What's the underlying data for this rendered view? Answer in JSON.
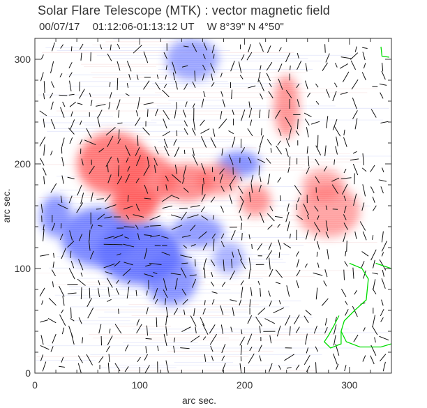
{
  "figure": {
    "title": "Solar Flare Telescope (MTK) : vector magnetic field",
    "date": "00/07/17",
    "time_range": "01:12:06-01:13:12 UT",
    "coords": "W 8°39\"   N 4°50\""
  },
  "chart_data": {
    "type": "heatmap",
    "title": "Solar Flare Telescope (MTK) : vector magnetic field",
    "xlabel": "arc sec.",
    "ylabel": "arc sec.",
    "xlim": [
      0,
      340
    ],
    "ylim": [
      0,
      320
    ],
    "x_ticks": [
      "0",
      "100",
      "200",
      "300"
    ],
    "y_ticks": [
      "0",
      "100",
      "200",
      "300"
    ],
    "legend": "none",
    "colors": {
      "positive": "#ff5a5a",
      "negative": "#5a6bff",
      "contour": "#00dd00",
      "axis": "#333333"
    },
    "positive_regions": [
      {
        "x": 95,
        "y": 162,
        "rx": 22,
        "ry": 18,
        "s": 1.0
      },
      {
        "x": 75,
        "y": 200,
        "rx": 35,
        "ry": 30,
        "s": 0.85
      },
      {
        "x": 105,
        "y": 185,
        "rx": 30,
        "ry": 25,
        "s": 0.75
      },
      {
        "x": 145,
        "y": 182,
        "rx": 25,
        "ry": 18,
        "s": 0.65
      },
      {
        "x": 175,
        "y": 185,
        "rx": 20,
        "ry": 15,
        "s": 0.5
      },
      {
        "x": 210,
        "y": 165,
        "rx": 15,
        "ry": 15,
        "s": 0.55
      },
      {
        "x": 240,
        "y": 255,
        "rx": 12,
        "ry": 30,
        "s": 0.55
      },
      {
        "x": 280,
        "y": 155,
        "rx": 30,
        "ry": 25,
        "s": 0.4
      },
      {
        "x": 275,
        "y": 180,
        "rx": 20,
        "ry": 15,
        "s": 0.3
      }
    ],
    "negative_regions": [
      {
        "x": 100,
        "y": 115,
        "rx": 40,
        "ry": 30,
        "s": 1.0
      },
      {
        "x": 60,
        "y": 130,
        "rx": 35,
        "ry": 28,
        "s": 0.85
      },
      {
        "x": 20,
        "y": 150,
        "rx": 15,
        "ry": 20,
        "s": 0.7
      },
      {
        "x": 130,
        "y": 90,
        "rx": 25,
        "ry": 25,
        "s": 0.7
      },
      {
        "x": 155,
        "y": 135,
        "rx": 25,
        "ry": 15,
        "s": 0.6
      },
      {
        "x": 195,
        "y": 200,
        "rx": 20,
        "ry": 12,
        "s": 0.75
      },
      {
        "x": 150,
        "y": 300,
        "rx": 25,
        "ry": 20,
        "s": 0.45
      },
      {
        "x": 185,
        "y": 110,
        "rx": 15,
        "ry": 15,
        "s": 0.3
      }
    ],
    "contour_value": "neutral line",
    "contour_path": [
      [
        300,
        105
      ],
      [
        312,
        100
      ],
      [
        318,
        90
      ],
      [
        316,
        70
      ],
      [
        305,
        60
      ],
      [
        295,
        50
      ],
      [
        292,
        40
      ],
      [
        297,
        30
      ],
      [
        310,
        25
      ],
      [
        330,
        25
      ],
      [
        340,
        28
      ]
    ],
    "contour_path_2": [
      [
        325,
        105
      ],
      [
        340,
        100
      ]
    ],
    "contour_path_3": [
      [
        290,
        55
      ],
      [
        285,
        45
      ],
      [
        280,
        36
      ],
      [
        276,
        30
      ],
      [
        282,
        24
      ],
      [
        292,
        28
      ],
      [
        292,
        40
      ]
    ]
  }
}
